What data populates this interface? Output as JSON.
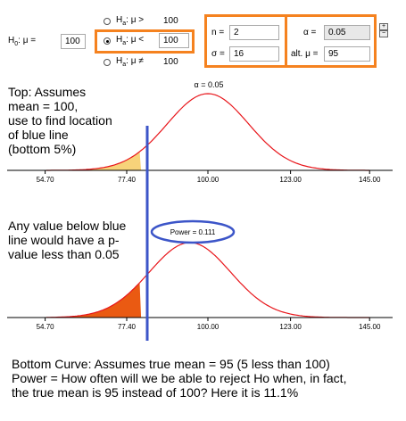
{
  "controls": {
    "h0_label": "H",
    "h0_sub": "0",
    "h0_suffix": ": μ =",
    "h0_value": "100",
    "ha_options": [
      {
        "prefix": "H",
        "sub": "a",
        "op": ": μ >",
        "value": "100",
        "selected": false
      },
      {
        "prefix": "H",
        "sub": "a",
        "op": ": μ <",
        "value": "100",
        "selected": true
      },
      {
        "prefix": "H",
        "sub": "a",
        "op": ": μ ≠",
        "value": "100",
        "selected": false
      }
    ],
    "n_label": "n =",
    "n_value": "2",
    "sigma_label": "σ =",
    "sigma_value": "16",
    "alpha_label": "α =",
    "alpha_value": "0.05",
    "alt_mu_label": "alt. μ =",
    "alt_mu_value": "95"
  },
  "top_plot": {
    "alpha_text": "α = 0.05",
    "ticks": [
      "54.70",
      "77.40",
      "100.00",
      "123.00",
      "145.00"
    ]
  },
  "bottom_plot": {
    "power_text": "Power = 0.111",
    "ticks": [
      "54.70",
      "77.40",
      "100.00",
      "123.00",
      "145.00"
    ]
  },
  "notes": {
    "top": [
      "Top: Assumes",
      "mean = 100,",
      "use to find location",
      "of blue line",
      "(bottom 5%)"
    ],
    "middle": [
      "Any value below blue",
      "line would have a p-",
      "value less than 0.05"
    ],
    "bottom": [
      "Bottom Curve:  Assumes true mean = 95 (5 less than 100)",
      "Power = How often will we be able to reject Ho when, in fact,",
      "the true mean is 95 instead of 100? Here it is 11.1%"
    ]
  },
  "colors": {
    "curve": "#e8161b",
    "rejection_top": "#f7d37a",
    "rejection_bottom": "#ea5a12",
    "blue_line": "#3c55c8",
    "highlight_box": "#f5821f"
  },
  "chart_data": [
    {
      "type": "area",
      "curve": "normal",
      "mean": 100,
      "sd": 11.31,
      "shaded_below": 81.4,
      "x_ticks": [
        "54.70",
        "77.40",
        "100.00",
        "123.00",
        "145.00"
      ],
      "annotation": "α = 0.05"
    },
    {
      "type": "area",
      "curve": "normal",
      "mean": 95,
      "sd": 11.31,
      "shaded_below": 81.4,
      "x_ticks": [
        "54.70",
        "77.40",
        "100.00",
        "123.00",
        "145.00"
      ],
      "annotation": "Power = 0.111"
    }
  ]
}
